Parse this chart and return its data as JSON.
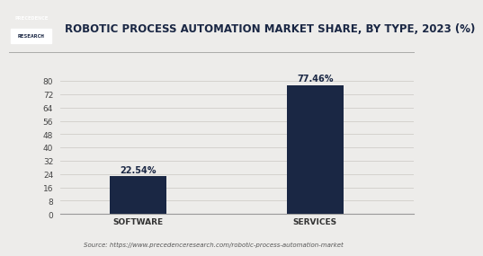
{
  "title": "ROBOTIC PROCESS AUTOMATION MARKET SHARE, BY TYPE, 2023 (%)",
  "categories": [
    "SOFTWARE",
    "SERVICES"
  ],
  "values": [
    22.54,
    77.46
  ],
  "labels": [
    "22.54%",
    "77.46%"
  ],
  "bar_color": "#1a2744",
  "background_color": "#edecea",
  "ylim": [
    0,
    85
  ],
  "yticks": [
    0,
    8,
    16,
    24,
    32,
    40,
    48,
    56,
    64,
    72,
    80
  ],
  "title_fontsize": 8.5,
  "tick_fontsize": 6.5,
  "label_fontsize": 7,
  "source_text": "Source: https://www.precedenceresearch.com/robotic-process-automation-market",
  "logo_text_top": "PRECEDENCE",
  "logo_text_bottom": "RESEARCH",
  "logo_bg": "#1a2744",
  "logo_text_color": "#ffffff",
  "title_color": "#1a2744",
  "grid_color": "#d0cec9"
}
